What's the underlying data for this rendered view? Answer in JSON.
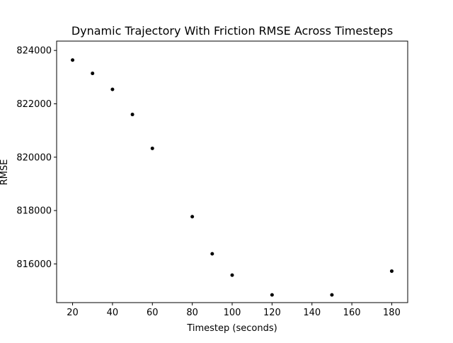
{
  "chart_data": {
    "type": "scatter",
    "title": "Dynamic Trajectory With Friction RMSE Across Timesteps",
    "xlabel": "Timestep (seconds)",
    "ylabel": "RMSE",
    "xlim": [
      12,
      188
    ],
    "ylim": [
      814550,
      824350
    ],
    "xticks": [
      20,
      40,
      60,
      80,
      100,
      120,
      140,
      160,
      180
    ],
    "yticks": [
      816000,
      818000,
      820000,
      822000,
      824000
    ],
    "grid": false,
    "marker_color": "#000000",
    "series": [
      {
        "x": [
          20,
          30,
          40,
          50,
          60,
          80,
          90,
          100,
          120,
          150,
          180
        ],
        "y": [
          823640,
          823140,
          822540,
          821600,
          820330,
          817770,
          816380,
          815580,
          814840,
          814840,
          815730
        ]
      }
    ]
  }
}
